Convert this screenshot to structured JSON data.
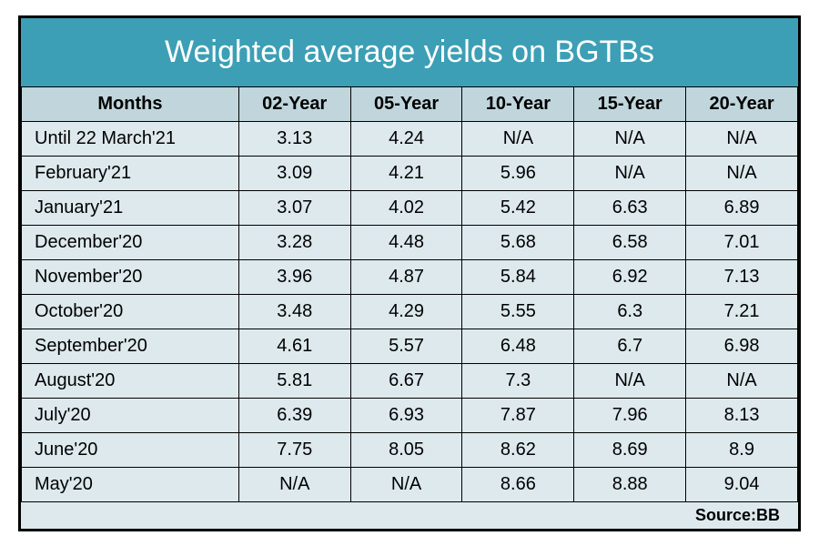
{
  "title": "Weighted average yields on BGTBs",
  "title_bg_color": "#3c9fb5",
  "title_text_color": "#ffffff",
  "title_fontsize": 34,
  "border_color": "#000000",
  "header_bg_color": "#c0d6dc",
  "body_bg_color": "#dde9ed",
  "cell_fontsize": 20,
  "header_fontsize": 20,
  "source_fontsize": 18,
  "columns": [
    "Months",
    "02-Year",
    "05-Year",
    "10-Year",
    "15-Year",
    "20-Year"
  ],
  "col_widths": [
    "28%",
    "14.4%",
    "14.4%",
    "14.4%",
    "14.4%",
    "14.4%"
  ],
  "rows": [
    [
      "Until 22 March'21",
      "3.13",
      "4.24",
      "N/A",
      "N/A",
      "N/A"
    ],
    [
      "February'21",
      "3.09",
      "4.21",
      "5.96",
      "N/A",
      "N/A"
    ],
    [
      "January'21",
      "3.07",
      "4.02",
      "5.42",
      "6.63",
      "6.89"
    ],
    [
      "December'20",
      "3.28",
      "4.48",
      "5.68",
      "6.58",
      "7.01"
    ],
    [
      "November'20",
      "3.96",
      "4.87",
      "5.84",
      "6.92",
      "7.13"
    ],
    [
      "October'20",
      "3.48",
      "4.29",
      "5.55",
      "6.3",
      "7.21"
    ],
    [
      "September'20",
      "4.61",
      "5.57",
      "6.48",
      "6.7",
      "6.98"
    ],
    [
      "August'20",
      "5.81",
      "6.67",
      "7.3",
      "N/A",
      "N/A"
    ],
    [
      "July'20",
      "6.39",
      "6.93",
      "7.87",
      "7.96",
      "8.13"
    ],
    [
      "June'20",
      "7.75",
      "8.05",
      "8.62",
      "8.69",
      "8.9"
    ],
    [
      "May'20",
      "N/A",
      "N/A",
      "8.66",
      "8.88",
      "9.04"
    ]
  ],
  "source_label": "Source:BB"
}
